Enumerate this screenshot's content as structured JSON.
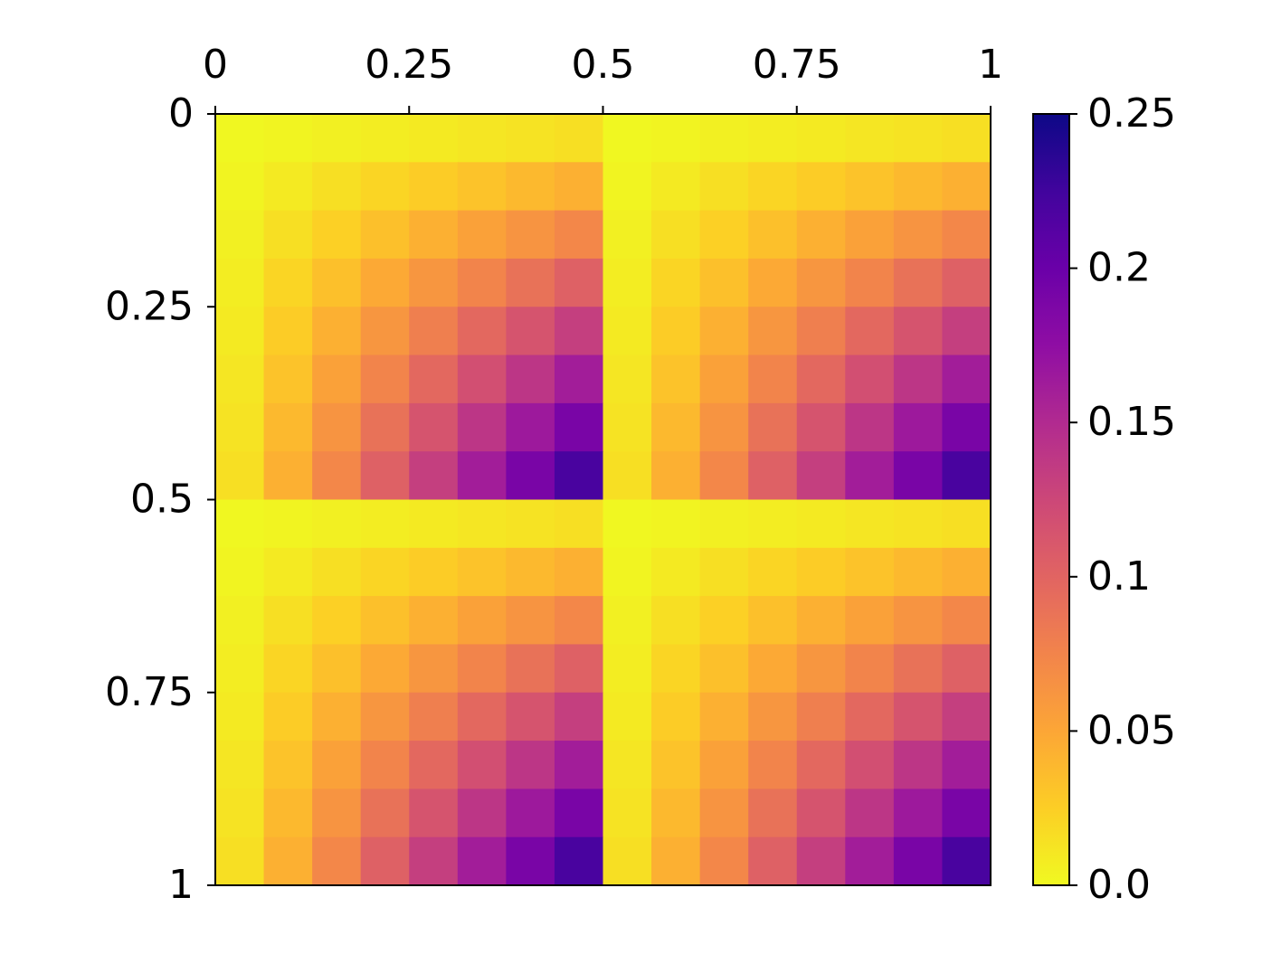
{
  "chart_data": {
    "type": "heatmap",
    "colormap": "plasma_r",
    "xlim": [
      0,
      1
    ],
    "ylim": [
      1,
      0
    ],
    "xticks": [
      0,
      0.25,
      0.5,
      0.75,
      1
    ],
    "yticks": [
      0,
      0.25,
      0.5,
      0.75,
      1
    ],
    "clim": [
      0,
      0.25
    ],
    "cticks": [
      {
        "value": 0,
        "label": "0.0"
      },
      0.05,
      0.1,
      0.15,
      0.2,
      0.25
    ],
    "values": [
      [
        0.001,
        0.003,
        0.005,
        0.007,
        0.009,
        0.011,
        0.013,
        0.015,
        0.001,
        0.003,
        0.005,
        0.007,
        0.009,
        0.011,
        0.013,
        0.015
      ],
      [
        0.003,
        0.009,
        0.015,
        0.021,
        0.026,
        0.032,
        0.038,
        0.044,
        0.003,
        0.009,
        0.015,
        0.021,
        0.026,
        0.032,
        0.038,
        0.044
      ],
      [
        0.005,
        0.015,
        0.024,
        0.034,
        0.044,
        0.054,
        0.063,
        0.073,
        0.005,
        0.015,
        0.024,
        0.034,
        0.044,
        0.054,
        0.063,
        0.073
      ],
      [
        0.007,
        0.021,
        0.034,
        0.048,
        0.062,
        0.075,
        0.089,
        0.103,
        0.007,
        0.021,
        0.034,
        0.048,
        0.062,
        0.075,
        0.089,
        0.103
      ],
      [
        0.009,
        0.026,
        0.044,
        0.062,
        0.079,
        0.097,
        0.114,
        0.132,
        0.009,
        0.026,
        0.044,
        0.062,
        0.079,
        0.097,
        0.114,
        0.132
      ],
      [
        0.011,
        0.032,
        0.054,
        0.075,
        0.097,
        0.118,
        0.14,
        0.161,
        0.011,
        0.032,
        0.054,
        0.075,
        0.097,
        0.118,
        0.14,
        0.161
      ],
      [
        0.013,
        0.038,
        0.063,
        0.089,
        0.114,
        0.14,
        0.165,
        0.19,
        0.013,
        0.038,
        0.063,
        0.089,
        0.114,
        0.14,
        0.165,
        0.19
      ],
      [
        0.015,
        0.044,
        0.073,
        0.103,
        0.132,
        0.161,
        0.19,
        0.22,
        0.015,
        0.044,
        0.073,
        0.103,
        0.132,
        0.161,
        0.19,
        0.22
      ],
      [
        0.001,
        0.003,
        0.005,
        0.007,
        0.009,
        0.011,
        0.013,
        0.015,
        0.001,
        0.003,
        0.005,
        0.007,
        0.009,
        0.011,
        0.013,
        0.015
      ],
      [
        0.003,
        0.009,
        0.015,
        0.021,
        0.026,
        0.032,
        0.038,
        0.044,
        0.003,
        0.009,
        0.015,
        0.021,
        0.026,
        0.032,
        0.038,
        0.044
      ],
      [
        0.005,
        0.015,
        0.024,
        0.034,
        0.044,
        0.054,
        0.063,
        0.073,
        0.005,
        0.015,
        0.024,
        0.034,
        0.044,
        0.054,
        0.063,
        0.073
      ],
      [
        0.007,
        0.021,
        0.034,
        0.048,
        0.062,
        0.075,
        0.089,
        0.103,
        0.007,
        0.021,
        0.034,
        0.048,
        0.062,
        0.075,
        0.089,
        0.103
      ],
      [
        0.009,
        0.026,
        0.044,
        0.062,
        0.079,
        0.097,
        0.114,
        0.132,
        0.009,
        0.026,
        0.044,
        0.062,
        0.079,
        0.097,
        0.114,
        0.132
      ],
      [
        0.011,
        0.032,
        0.054,
        0.075,
        0.097,
        0.118,
        0.14,
        0.161,
        0.011,
        0.032,
        0.054,
        0.075,
        0.097,
        0.118,
        0.14,
        0.161
      ],
      [
        0.013,
        0.038,
        0.063,
        0.089,
        0.114,
        0.14,
        0.165,
        0.19,
        0.013,
        0.038,
        0.063,
        0.089,
        0.114,
        0.14,
        0.165,
        0.19
      ],
      [
        0.015,
        0.044,
        0.073,
        0.103,
        0.132,
        0.161,
        0.19,
        0.22,
        0.015,
        0.044,
        0.073,
        0.103,
        0.132,
        0.161,
        0.19,
        0.22
      ]
    ]
  }
}
